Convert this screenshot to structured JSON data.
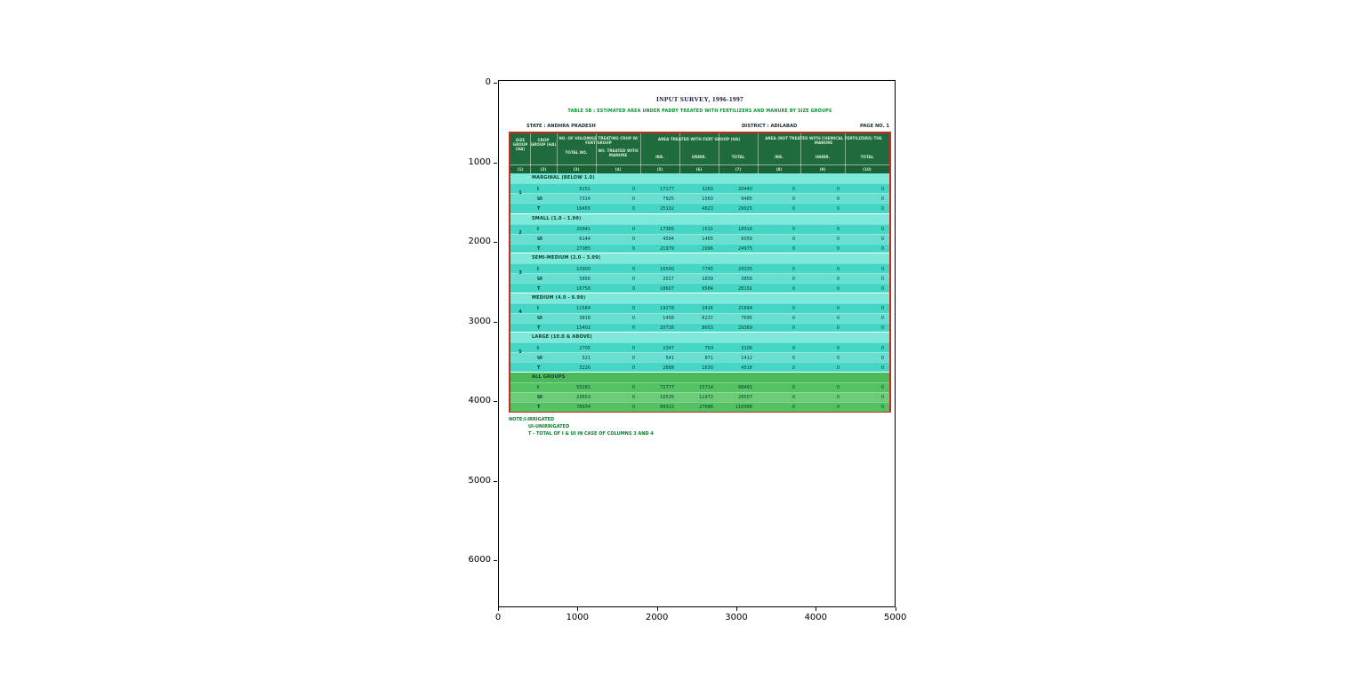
{
  "axes": {
    "x_ticks": [
      "0",
      "1000",
      "2000",
      "3000",
      "4000",
      "5000"
    ],
    "y_ticks": [
      "0",
      "1000",
      "2000",
      "3000",
      "4000",
      "5000",
      "6000"
    ]
  },
  "doc": {
    "title": "INPUT SURVEY, 1996-1997",
    "subtitle": "TABLE 5B : ESTIMATED AREA UNDER PADDY TREATED WITH FERTILIZERS AND MANURE BY SIZE GROUPS",
    "meta": {
      "state": "STATE : ANDHRA PRADESH",
      "district": "DISTRICT : ADILABAD",
      "page": "PAGE NO. 1"
    },
    "notes": [
      "NOTE:I-IRRIGATED",
      "UI-UNIRRIGATED",
      "T - TOTAL OF I & UI IN CASE OF COLUMNS 3 AND 4"
    ]
  },
  "chart_data": {
    "type": "table",
    "title": "TABLE 5B : ESTIMATED AREA UNDER PADDY TREATED WITH FERTILIZERS AND MANURE BY SIZE GROUPS",
    "header": {
      "size_group": "SIZE GROUP (HA)",
      "crop_group": "CROP GROUP (HA)",
      "holdings_group": "NO. OF HOLDINGS TREATING CROP W/ FERT GROUP",
      "total_no": "TOTAL NO.",
      "treated_manure": "NO. TREATED WITH MANURE",
      "area_fert": "AREA TREATED WITH FERT GROUP (HA)",
      "area_manure": "AREA (NOT TREATED WITH CHEMICAL FERTILIZERS) THE MANURE",
      "irr": "IRR.",
      "unirr": "UNIRR.",
      "total": "TOTAL"
    },
    "colnums": [
      "(1)",
      "(2)",
      "(3)",
      "(4)",
      "(5)",
      "(6)",
      "(7)",
      "(8)",
      "(9)",
      "(10)"
    ],
    "row_types": [
      "I",
      "UI",
      "T"
    ],
    "groups": [
      {
        "no": "1",
        "label": "MARGINAL (BELOW 1.0)",
        "rows": [
          {
            "t": "I",
            "v": [
              "9151",
              "0",
              "17177",
              "3263",
              "20440",
              "0",
              "0",
              "0"
            ]
          },
          {
            "t": "UI",
            "v": [
              "7314",
              "0",
              "7925",
              "1560",
              "9485",
              "0",
              "0",
              "0"
            ]
          },
          {
            "t": "T",
            "v": [
              "16465",
              "0",
              "25102",
              "4823",
              "29925",
              "0",
              "0",
              "0"
            ]
          }
        ]
      },
      {
        "no": "2",
        "label": "SMALL (1.0 - 1.99)",
        "rows": [
          {
            "t": "I",
            "v": [
              "20941",
              "0",
              "17385",
              "1531",
              "18916",
              "0",
              "0",
              "0"
            ]
          },
          {
            "t": "UI",
            "v": [
              "6144",
              "0",
              "4594",
              "1465",
              "6059",
              "0",
              "0",
              "0"
            ]
          },
          {
            "t": "T",
            "v": [
              "27085",
              "0",
              "21979",
              "2996",
              "24975",
              "0",
              "0",
              "0"
            ]
          }
        ]
      },
      {
        "no": "3",
        "label": "SEMI-MEDIUM (2.0 - 3.99)",
        "rows": [
          {
            "t": "I",
            "v": [
              "10900",
              "0",
              "16590",
              "7745",
              "24335",
              "0",
              "0",
              "0"
            ]
          },
          {
            "t": "UI",
            "v": [
              "5856",
              "0",
              "2017",
              "1839",
              "3856",
              "0",
              "0",
              "0"
            ]
          },
          {
            "t": "T",
            "v": [
              "16756",
              "0",
              "18607",
              "9584",
              "28191",
              "0",
              "0",
              "0"
            ]
          }
        ]
      },
      {
        "no": "4",
        "label": "MEDIUM (4.0 - 9.99)",
        "rows": [
          {
            "t": "I",
            "v": [
              "11584",
              "0",
              "19278",
              "2416",
              "21694",
              "0",
              "0",
              "0"
            ]
          },
          {
            "t": "UI",
            "v": [
              "3818",
              "0",
              "1458",
              "6237",
              "7695",
              "0",
              "0",
              "0"
            ]
          },
          {
            "t": "T",
            "v": [
              "15402",
              "0",
              "20736",
              "8653",
              "29389",
              "0",
              "0",
              "0"
            ]
          }
        ]
      },
      {
        "no": "5",
        "label": "LARGE (10.0 & ABOVE)",
        "rows": [
          {
            "t": "I",
            "v": [
              "2705",
              "0",
              "2347",
              "759",
              "3106",
              "0",
              "0",
              "0"
            ]
          },
          {
            "t": "UI",
            "v": [
              "521",
              "0",
              "541",
              "871",
              "1412",
              "0",
              "0",
              "0"
            ]
          },
          {
            "t": "T",
            "v": [
              "3226",
              "0",
              "2888",
              "1630",
              "4518",
              "0",
              "0",
              "0"
            ]
          }
        ]
      },
      {
        "no": "",
        "label": "ALL GROUPS",
        "all": true,
        "rows": [
          {
            "t": "I",
            "v": [
              "55281",
              "0",
              "72777",
              "15714",
              "88491",
              "0",
              "0",
              "0"
            ]
          },
          {
            "t": "UI",
            "v": [
              "23653",
              "0",
              "16535",
              "11972",
              "28507",
              "0",
              "0",
              "0"
            ]
          },
          {
            "t": "T",
            "v": [
              "78934",
              "0",
              "89312",
              "27686",
              "116998",
              "0",
              "0",
              "0"
            ]
          }
        ]
      }
    ]
  },
  "colors": {
    "table_border_red": "#cc2a1e",
    "header_green": "#1f6b3d",
    "body_teal": "#46d6c6",
    "group_label_teal": "#7ce9da",
    "all_groups_green": "#53c263",
    "title_green": "#0a8f2f",
    "note_green": "#0c7d2a"
  }
}
